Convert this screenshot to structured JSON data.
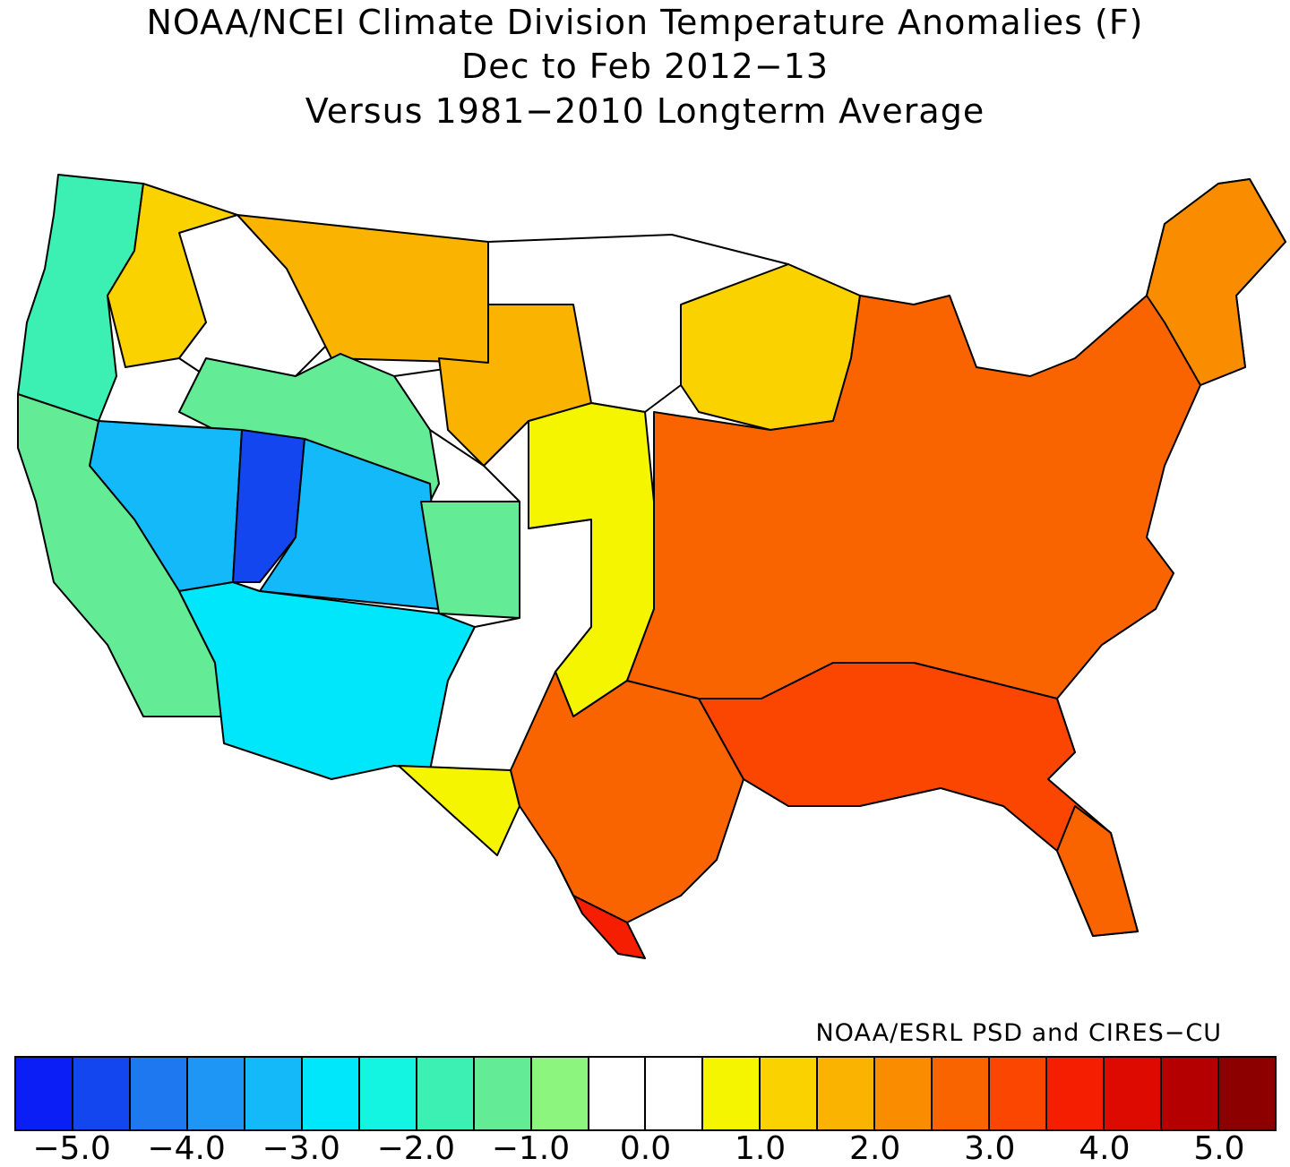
{
  "title": {
    "line1": "NOAA/NCEI Climate Division Temperature Anomalies (F)",
    "line2": "Dec to Feb 2012−13",
    "line3": "Versus 1981−2010 Longterm Average"
  },
  "credit": "NOAA/ESRL PSD and CIRES−CU",
  "legend": {
    "colors": [
      "#0a1ef5",
      "#1446f0",
      "#1e78f0",
      "#1e96f5",
      "#14b9fa",
      "#00e6fa",
      "#14f5e1",
      "#3cf0b4",
      "#64eb96",
      "#8cf57d",
      "#ffffff",
      "#ffffff",
      "#f5f500",
      "#fad200",
      "#fab400",
      "#fa8c00",
      "#fa6400",
      "#fa4600",
      "#f51e00",
      "#dc0a00",
      "#b40000",
      "#8c0000"
    ],
    "labels": [
      "−5.0",
      "−4.0",
      "−3.0",
      "−2.0",
      "−1.0",
      "0.0",
      "1.0",
      "2.0",
      "3.0",
      "4.0",
      "5.0"
    ]
  },
  "regions": [
    {
      "name": "pacific-northwest-coast",
      "color": "#3cf0b4"
    },
    {
      "name": "northern-rockies",
      "color": "#fad200"
    },
    {
      "name": "montana-plains",
      "color": "#fab400"
    },
    {
      "name": "northern-plains",
      "color": "#ffffff"
    },
    {
      "name": "upper-midwest",
      "color": "#fad200"
    },
    {
      "name": "great-basin",
      "color": "#14b9fa"
    },
    {
      "name": "utah-core",
      "color": "#1446f0"
    },
    {
      "name": "four-corners",
      "color": "#00e6fa"
    },
    {
      "name": "california",
      "color": "#64eb96"
    },
    {
      "name": "central-plains",
      "color": "#f5f500"
    },
    {
      "name": "eastern-us",
      "color": "#fa6400"
    },
    {
      "name": "southeast",
      "color": "#fa4600"
    },
    {
      "name": "south-texas",
      "color": "#f51e00"
    },
    {
      "name": "west-texas",
      "color": "#f5f500"
    },
    {
      "name": "new-england",
      "color": "#fa8c00"
    }
  ]
}
